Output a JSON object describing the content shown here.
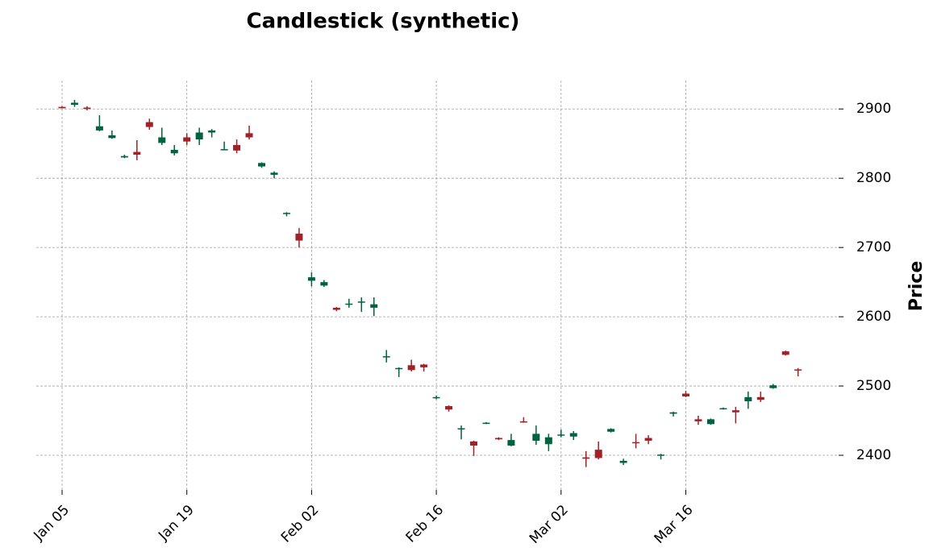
{
  "chart_data": {
    "type": "candlestick",
    "title": "Candlestick (synthetic)",
    "y_label": "Price",
    "categories": [
      "Jan 05",
      null,
      null,
      null,
      null,
      null,
      null,
      null,
      null,
      null,
      "Jan 19",
      null,
      null,
      null,
      null,
      null,
      null,
      null,
      null,
      null,
      "Feb 02",
      null,
      null,
      null,
      null,
      null,
      null,
      null,
      null,
      null,
      "Feb 16",
      null,
      null,
      null,
      null,
      null,
      null,
      null,
      null,
      null,
      "Mar 02",
      null,
      null,
      null,
      null,
      null,
      null,
      null,
      null,
      null,
      "Mar 16",
      null,
      null,
      null,
      null,
      null,
      null,
      null,
      null,
      null
    ],
    "open": [
      2903,
      2906,
      2902,
      2869,
      2858,
      2830,
      2838,
      2881,
      2851,
      2836,
      2859,
      2856,
      2866,
      2841,
      2848,
      2865,
      2817,
      2805,
      2749,
      2720,
      2652,
      2645,
      2613,
      2618,
      2621,
      2613,
      2542,
      2525,
      2530,
      2531,
      2483,
      2471,
      2438,
      2420,
      2446,
      2425,
      2414,
      2449,
      2421,
      2416,
      2429,
      2427,
      2397,
      2408,
      2434,
      2389,
      2419,
      2425,
      2400,
      2460,
      2489,
      2452,
      2445,
      2467,
      2465,
      2478,
      2484,
      2497,
      2550,
      2524
    ],
    "high": [
      2904,
      2913,
      2904,
      2891,
      2869,
      2834,
      2855,
      2886,
      2873,
      2848,
      2865,
      2873,
      2871,
      2853,
      2856,
      2876,
      2823,
      2810,
      2751,
      2728,
      2664,
      2653,
      2614,
      2626,
      2628,
      2628,
      2552,
      2527,
      2538,
      2532,
      2486,
      2472,
      2443,
      2421,
      2448,
      2426,
      2431,
      2455,
      2443,
      2431,
      2437,
      2435,
      2406,
      2420,
      2439,
      2395,
      2431,
      2429,
      2402,
      2463,
      2493,
      2457,
      2453,
      2469,
      2470,
      2492,
      2492,
      2503,
      2551,
      2526
    ],
    "low": [
      2901,
      2903,
      2898,
      2868,
      2857,
      2829,
      2826,
      2870,
      2848,
      2833,
      2848,
      2848,
      2859,
      2841,
      2836,
      2856,
      2815,
      2800,
      2745,
      2700,
      2644,
      2643,
      2608,
      2613,
      2607,
      2601,
      2534,
      2513,
      2521,
      2521,
      2481,
      2463,
      2423,
      2399,
      2445,
      2422,
      2413,
      2447,
      2415,
      2406,
      2426,
      2422,
      2383,
      2394,
      2433,
      2386,
      2410,
      2416,
      2394,
      2456,
      2484,
      2444,
      2444,
      2466,
      2446,
      2467,
      2477,
      2496,
      2544,
      2514
    ],
    "close": [
      2901,
      2909,
      2900,
      2875,
      2862,
      2832,
      2834,
      2874,
      2859,
      2841,
      2853,
      2866,
      2869,
      2842,
      2840,
      2859,
      2822,
      2808,
      2750,
      2710,
      2657,
      2650,
      2610,
      2619,
      2622,
      2618,
      2543,
      2526,
      2523,
      2527,
      2484,
      2466,
      2439,
      2414,
      2447,
      2423,
      2422,
      2448,
      2431,
      2426,
      2430,
      2432,
      2395,
      2396,
      2438,
      2392,
      2418,
      2421,
      2401,
      2462,
      2485,
      2449,
      2452,
      2468,
      2462,
      2484,
      2480,
      2501,
      2545,
      2523
    ],
    "up_color": "#006340",
    "down_color": "#a02128",
    "ylim": [
      2350,
      2941
    ],
    "yticks": [
      2400,
      2500,
      2600,
      2700,
      2800,
      2900
    ],
    "grid": true
  }
}
